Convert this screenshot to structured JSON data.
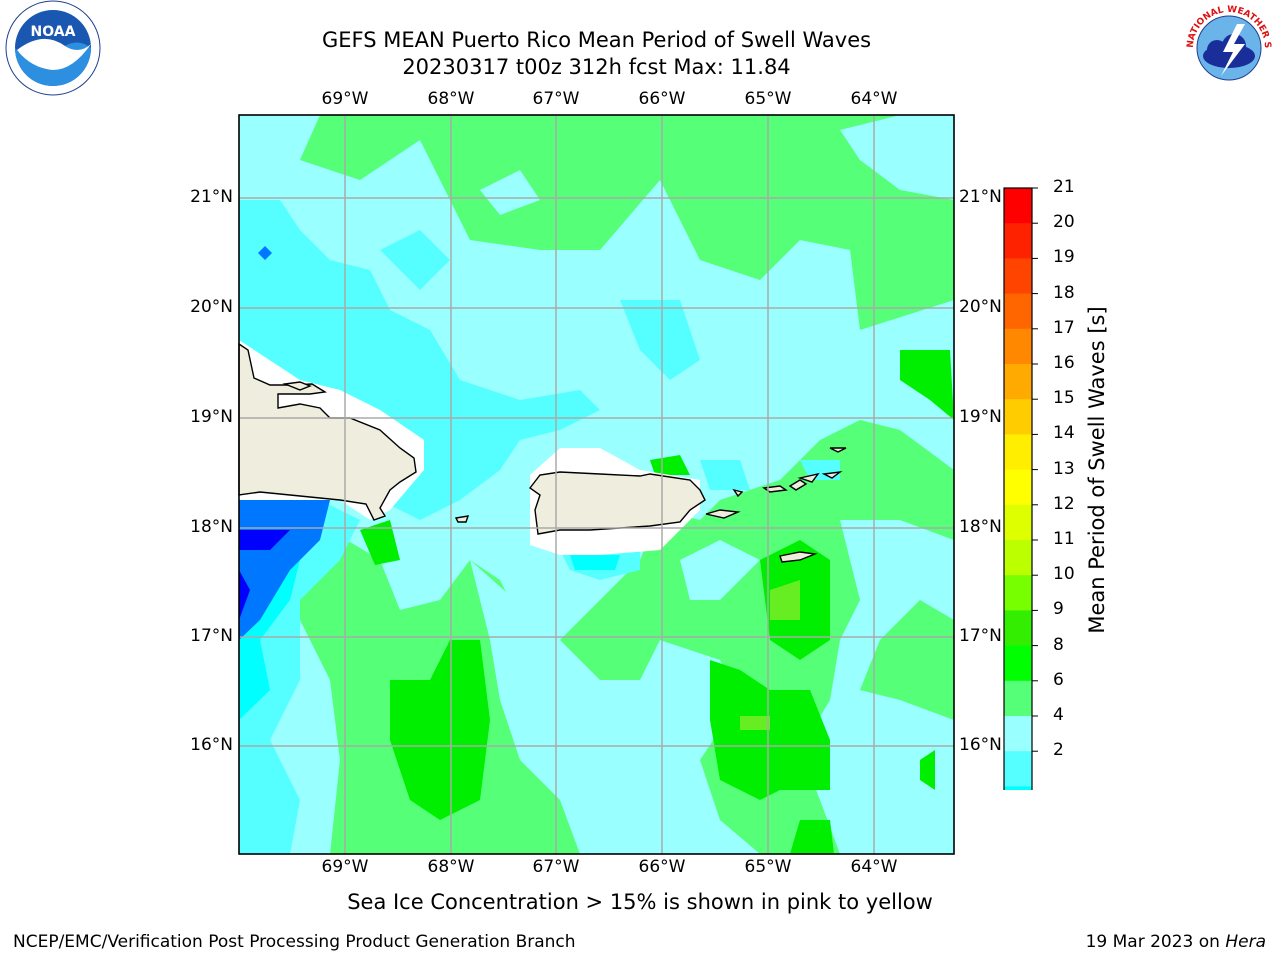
{
  "title": {
    "line1": "GEFS MEAN Puerto Rico Mean Period of Swell Waves",
    "line2": "20230317 t00z 312h fcst   Max: 11.84"
  },
  "logos": {
    "left": {
      "name": "noaa-logo",
      "text": "NOAA"
    },
    "right": {
      "name": "nws-logo",
      "text": "NATIONAL WEATHER SERVICE"
    }
  },
  "map": {
    "lon_labels": [
      "69°W",
      "68°W",
      "67°W",
      "66°W",
      "65°W",
      "64°W"
    ],
    "lat_labels": [
      "21°N",
      "20°N",
      "19°N",
      "18°N",
      "17°N",
      "16°N"
    ]
  },
  "colorbar": {
    "title": "Mean Period of Swell Waves [s]",
    "ticks": [
      "21",
      "20",
      "19",
      "18",
      "17",
      "16",
      "15",
      "14",
      "13",
      "12",
      "11",
      "10",
      "9",
      "8",
      "6",
      "4",
      "2"
    ],
    "colors": [
      "#ff0000",
      "#ff2200",
      "#ff4400",
      "#ff6600",
      "#ff8800",
      "#ffaa00",
      "#ffcc00",
      "#ffee00",
      "#ffff00",
      "#ddff00",
      "#bbff00",
      "#77ff00",
      "#33ee00",
      "#00ff00",
      "#55ff77",
      "#99ffff",
      "#55ffff",
      "#00ffff",
      "#0077ff",
      "#0000ff"
    ]
  },
  "palette": {
    "ocean_light_green": "#55ff77",
    "ocean_cyan_light": "#99ffff",
    "ocean_cyan": "#55ffff",
    "ocean_bright_cyan": "#00ffff",
    "deep_blue": "#0000ff",
    "mid_blue": "#0077ff",
    "green": "#00ee00",
    "land": "#eeedde",
    "grid": "#aaaaaa"
  },
  "footer": {
    "caption": "Sea Ice Concentration > 15% is shown in pink to yellow",
    "left": "NCEP/EMC/Verification Post Processing Product Generation Branch",
    "right_prefix": "19 Mar 2023 on ",
    "right_em": "Hera"
  }
}
